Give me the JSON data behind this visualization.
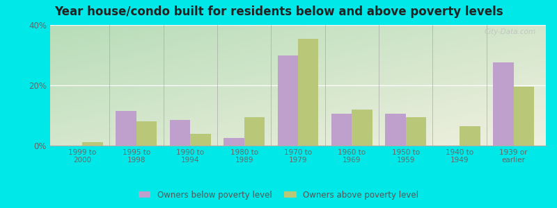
{
  "title": "Year house/condo built for residents below and above poverty levels",
  "categories": [
    "1999 to\n2000",
    "1995 to\n1998",
    "1990 to\n1994",
    "1980 to\n1989",
    "1970 to\n1979",
    "1960 to\n1969",
    "1950 to\n1959",
    "1940 to\n1949",
    "1939 or\nearlier"
  ],
  "below_poverty": [
    0.0,
    11.5,
    8.5,
    2.5,
    30.0,
    10.5,
    10.5,
    0.0,
    27.5
  ],
  "above_poverty": [
    1.2,
    8.0,
    4.0,
    9.5,
    35.5,
    12.0,
    9.5,
    6.5,
    19.5
  ],
  "below_color": "#bf9fcc",
  "above_color": "#b8c878",
  "ylim": [
    0,
    40
  ],
  "yticks": [
    0,
    20,
    40
  ],
  "ytick_labels": [
    "0%",
    "20%",
    "40%"
  ],
  "bg_top_left": "#b8ddb8",
  "bg_bottom_right": "#f0f0e0",
  "outer_bg": "#00e8e8",
  "bar_width": 0.38,
  "legend_below_label": "Owners below poverty level",
  "legend_above_label": "Owners above poverty level",
  "watermark": "City-Data.com"
}
